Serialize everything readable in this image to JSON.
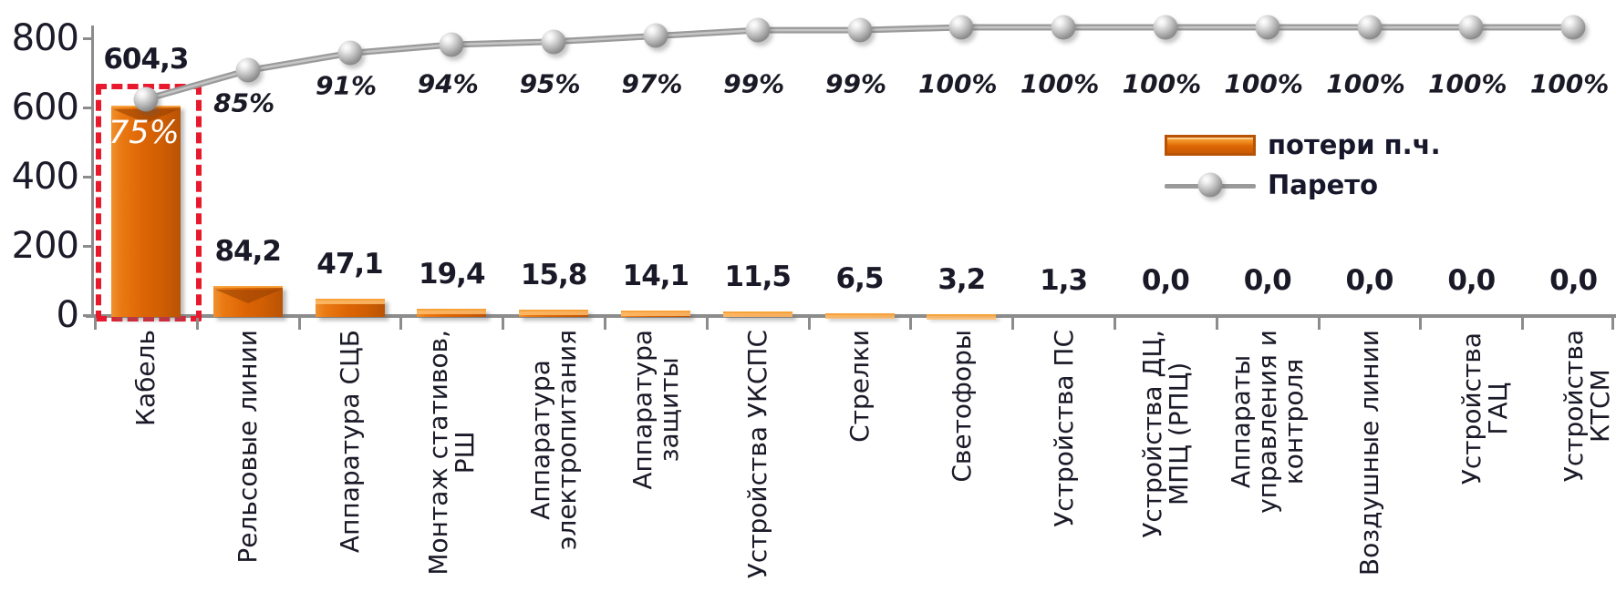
{
  "chart_data": {
    "type": "bar",
    "subtype": "pareto",
    "title": "",
    "xlabel": "",
    "ylabel": "",
    "categories": [
      "Кабель",
      "Рельсовые линии",
      "Аппаратура СЦБ",
      "Монтаж стативов,\nРШ",
      "Аппаратура\nэлектропитания",
      "Аппаратура\nзащиты",
      "Устройства УКСПС",
      "Стрелки",
      "Светофоры",
      "Устройства  ПС",
      "Устройства ДЦ,\nМПЦ (РПЦ)",
      "Аппараты\nуправления и\nконтроля",
      "Воздушные линии",
      "Устройства ГАЦ",
      "Устройства КТСМ"
    ],
    "series": [
      {
        "name": "потери п.ч.",
        "type": "bar",
        "color": "#E26B0A",
        "values": [
          604.3,
          84.2,
          47.1,
          19.4,
          15.8,
          14.1,
          11.5,
          6.5,
          3.2,
          1.3,
          0.0,
          0.0,
          0.0,
          0.0,
          0.0
        ],
        "value_labels": [
          "604,3",
          "84,2",
          "47,1",
          "19,4",
          "15,8",
          "14,1",
          "11,5",
          "6,5",
          "3,2",
          "1,3",
          "0,0",
          "0,0",
          "0,0",
          "0,0",
          "0,0"
        ]
      },
      {
        "name": "Парето",
        "type": "line",
        "unit": "%",
        "color": "#9A9A9A",
        "values": [
          75,
          85,
          91,
          94,
          95,
          97,
          99,
          99,
          100,
          100,
          100,
          100,
          100,
          100,
          100
        ],
        "value_labels": [
          "75%",
          "85%",
          "91%",
          "94%",
          "95%",
          "97%",
          "99%",
          "99%",
          "100%",
          "100%",
          "100%",
          "100%",
          "100%",
          "100%",
          "100%"
        ]
      }
    ],
    "yticks": [
      "800",
      "600",
      "400",
      "200",
      "0"
    ],
    "ylim": [
      0,
      800
    ],
    "y2lim": [
      0,
      100
    ],
    "grid": false,
    "legend": {
      "position": "center-right",
      "items": [
        "потери п.ч.",
        "Парето"
      ]
    },
    "annotations": {
      "first_point_label_inside_bar": "75%",
      "highlight": {
        "target_category": "Кабель",
        "style": "dashed rectangle",
        "color": "#E8192C"
      }
    },
    "colors": {
      "bar_orange": "#E26B0A",
      "line_gray": "#9A9A9A",
      "highlight_red": "#E8192C",
      "axis_gray": "#8C8C8C",
      "text_dark": "#1A1A28",
      "inside_label_white": "#FFFFFF"
    }
  }
}
